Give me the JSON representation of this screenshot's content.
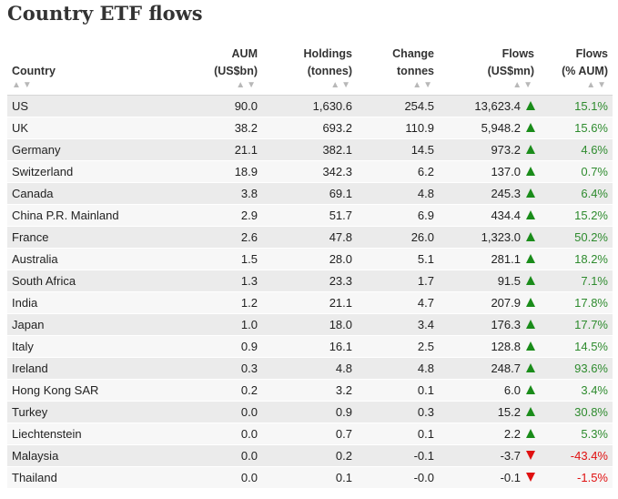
{
  "title": "Country ETF flows",
  "columns": [
    {
      "line1": "",
      "line2": "Country"
    },
    {
      "line1": "AUM",
      "line2": "(US$bn)"
    },
    {
      "line1": "Holdings",
      "line2": "(tonnes)"
    },
    {
      "line1": "Change",
      "line2": "tonnes"
    },
    {
      "line1": "Flows",
      "line2": "(US$mn)"
    },
    {
      "line1": "Flows",
      "line2": "(% AUM)"
    }
  ],
  "sort_glyph": "▲▼",
  "colors": {
    "up": "#1a8c1a",
    "down": "#e01010",
    "pct_pos": "#2e8b2e",
    "pct_neg": "#e01010"
  },
  "rows": [
    {
      "country": "US",
      "aum": "90.0",
      "holdings": "1,630.6",
      "change": "254.5",
      "flows": "13,623.4",
      "direction": "up",
      "pct": "15.1%"
    },
    {
      "country": "UK",
      "aum": "38.2",
      "holdings": "693.2",
      "change": "110.9",
      "flows": "5,948.2",
      "direction": "up",
      "pct": "15.6%"
    },
    {
      "country": "Germany",
      "aum": "21.1",
      "holdings": "382.1",
      "change": "14.5",
      "flows": "973.2",
      "direction": "up",
      "pct": "4.6%"
    },
    {
      "country": "Switzerland",
      "aum": "18.9",
      "holdings": "342.3",
      "change": "6.2",
      "flows": "137.0",
      "direction": "up",
      "pct": "0.7%"
    },
    {
      "country": "Canada",
      "aum": "3.8",
      "holdings": "69.1",
      "change": "4.8",
      "flows": "245.3",
      "direction": "up",
      "pct": "6.4%"
    },
    {
      "country": "China P.R. Mainland",
      "aum": "2.9",
      "holdings": "51.7",
      "change": "6.9",
      "flows": "434.4",
      "direction": "up",
      "pct": "15.2%"
    },
    {
      "country": "France",
      "aum": "2.6",
      "holdings": "47.8",
      "change": "26.0",
      "flows": "1,323.0",
      "direction": "up",
      "pct": "50.2%"
    },
    {
      "country": "Australia",
      "aum": "1.5",
      "holdings": "28.0",
      "change": "5.1",
      "flows": "281.1",
      "direction": "up",
      "pct": "18.2%"
    },
    {
      "country": "South Africa",
      "aum": "1.3",
      "holdings": "23.3",
      "change": "1.7",
      "flows": "91.5",
      "direction": "up",
      "pct": "7.1%"
    },
    {
      "country": "India",
      "aum": "1.2",
      "holdings": "21.1",
      "change": "4.7",
      "flows": "207.9",
      "direction": "up",
      "pct": "17.8%"
    },
    {
      "country": "Japan",
      "aum": "1.0",
      "holdings": "18.0",
      "change": "3.4",
      "flows": "176.3",
      "direction": "up",
      "pct": "17.7%"
    },
    {
      "country": "Italy",
      "aum": "0.9",
      "holdings": "16.1",
      "change": "2.5",
      "flows": "128.8",
      "direction": "up",
      "pct": "14.5%"
    },
    {
      "country": "Ireland",
      "aum": "0.3",
      "holdings": "4.8",
      "change": "4.8",
      "flows": "248.7",
      "direction": "up",
      "pct": "93.6%"
    },
    {
      "country": "Hong Kong SAR",
      "aum": "0.2",
      "holdings": "3.2",
      "change": "0.1",
      "flows": "6.0",
      "direction": "up",
      "pct": "3.4%"
    },
    {
      "country": "Turkey",
      "aum": "0.0",
      "holdings": "0.9",
      "change": "0.3",
      "flows": "15.2",
      "direction": "up",
      "pct": "30.8%"
    },
    {
      "country": "Liechtenstein",
      "aum": "0.0",
      "holdings": "0.7",
      "change": "0.1",
      "flows": "2.2",
      "direction": "up",
      "pct": "5.3%"
    },
    {
      "country": "Malaysia",
      "aum": "0.0",
      "holdings": "0.2",
      "change": "-0.1",
      "flows": "-3.7",
      "direction": "down",
      "pct": "-43.4%"
    },
    {
      "country": "Thailand",
      "aum": "0.0",
      "holdings": "0.1",
      "change": "-0.0",
      "flows": "-0.1",
      "direction": "down",
      "pct": "-1.5%"
    }
  ]
}
